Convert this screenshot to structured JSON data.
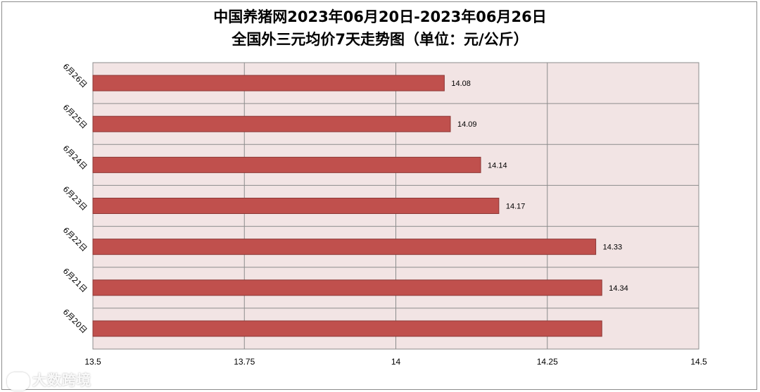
{
  "chart_data": {
    "type": "bar",
    "orientation": "horizontal",
    "title": "中国养猪网2023年06月20日-2023年06月26日",
    "subtitle": "全国外三元均价7天走势图（单位：元/公斤）",
    "categories": [
      "6月26日",
      "6月25日",
      "6月24日",
      "6月23日",
      "6月22日",
      "6月21日",
      "6月20日"
    ],
    "values": [
      14.08,
      14.09,
      14.14,
      14.17,
      14.33,
      14.34,
      14.34
    ],
    "data_labels": [
      "14.08",
      "14.09",
      "14.14",
      "14.17",
      "14.33",
      "14.34",
      ""
    ],
    "xlim": [
      13.5,
      14.5
    ],
    "xticks": [
      13.5,
      13.75,
      14,
      14.25,
      14.5
    ],
    "xtick_labels": [
      "13.5",
      "13.75",
      "14",
      "14.25",
      "14.5"
    ],
    "grid": true,
    "colors": {
      "bar_fill": "#c0504d",
      "bar_edge": "#8c3836",
      "plot_background": "#f2e4e4",
      "grid": "#8c8c8c"
    }
  },
  "watermark": "大数跨境"
}
